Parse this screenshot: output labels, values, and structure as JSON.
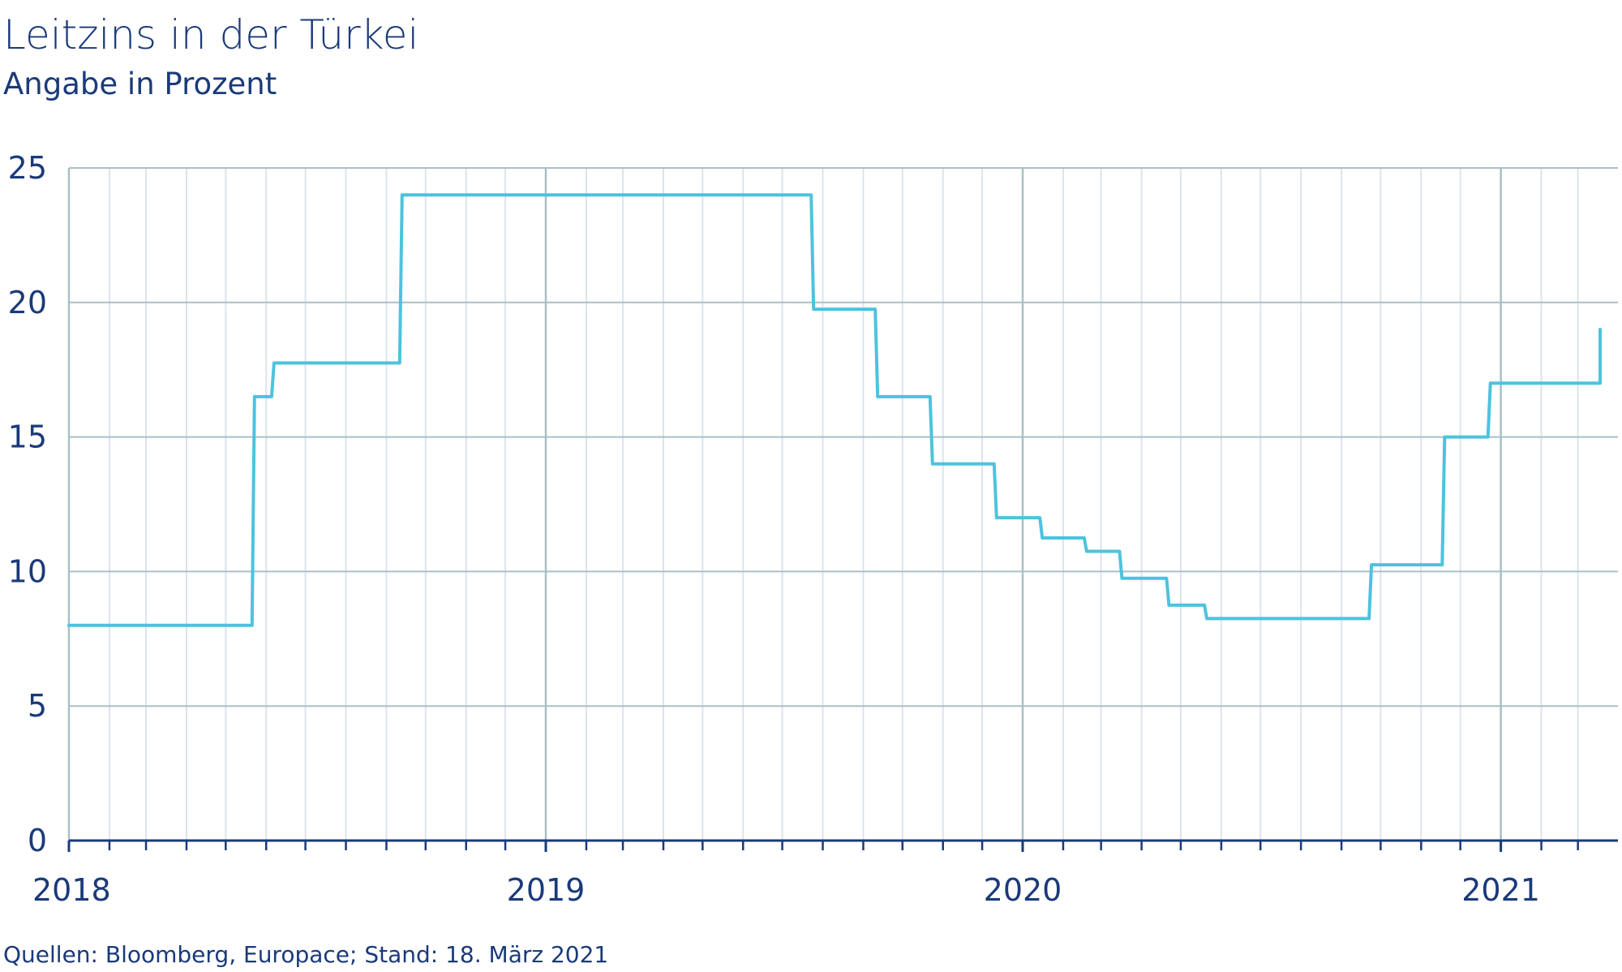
{
  "header": {
    "title": "Leitzins in der Türkei",
    "subtitle": "Angabe in Prozent"
  },
  "footer": {
    "source": "Quellen: Bloomberg, Europace; Stand: 18. März 2021"
  },
  "colors": {
    "line": "#4cc3de",
    "text": "#1a3a7a",
    "grid": "#a9bfc6",
    "minor_grid": "#dde3ec",
    "axis": "#1a3a7a"
  },
  "chart_data": {
    "type": "line",
    "title": "Leitzins in der Türkei",
    "subtitle": "Angabe in Prozent",
    "ylim": [
      0,
      25
    ],
    "yticks": [
      0,
      5,
      10,
      15,
      20,
      25
    ],
    "ytick_labels": [
      "0",
      "5",
      "10",
      "15",
      "20",
      "25"
    ],
    "xlim": [
      "2018-01-01",
      "2021-03-18"
    ],
    "xticks": [
      "2018-01-01",
      "2019-01-01",
      "2020-01-01",
      "2021-01-01"
    ],
    "xtick_labels": [
      "2018",
      "2019",
      "2020",
      "2021"
    ],
    "grid": true,
    "step": true,
    "series": [
      {
        "x": [
          "2018-01-01",
          "2018-05-23",
          "2018-06-07",
          "2018-09-13",
          "2019-07-25",
          "2019-09-12",
          "2019-10-24",
          "2019-12-12",
          "2020-01-16",
          "2020-02-19",
          "2020-03-17",
          "2020-04-22",
          "2020-05-21",
          "2020-09-24",
          "2020-11-19",
          "2020-12-24",
          "2021-03-18"
        ],
        "values": [
          8.0,
          16.5,
          17.75,
          24.0,
          19.75,
          16.5,
          14.0,
          12.0,
          11.25,
          10.75,
          9.75,
          8.75,
          8.25,
          10.25,
          15.0,
          17.0,
          19.0
        ]
      }
    ]
  }
}
